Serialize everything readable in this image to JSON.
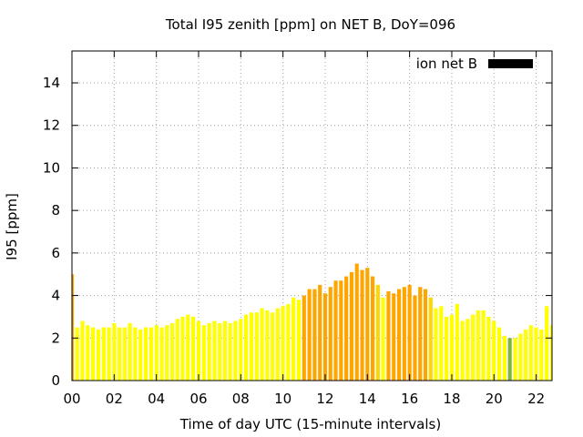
{
  "chart_data": {
    "type": "bar",
    "title": "Total I95 zenith [ppm] on NET B, DoY=096",
    "xlabel": "Time of day UTC (15-minute intervals)",
    "ylabel": "I95 [ppm]",
    "xlim": [
      0,
      22.75
    ],
    "ylim": [
      0,
      15.5
    ],
    "x_ticks": [
      0,
      2,
      4,
      6,
      8,
      10,
      12,
      14,
      16,
      18,
      20,
      22
    ],
    "x_tick_labels": [
      "00",
      "02",
      "04",
      "06",
      "08",
      "10",
      "12",
      "14",
      "16",
      "18",
      "20",
      "22"
    ],
    "y_ticks": [
      0,
      2,
      4,
      6,
      8,
      10,
      12,
      14
    ],
    "y_tick_labels": [
      "0",
      "2",
      "4",
      "6",
      "8",
      "10",
      "12",
      "14"
    ],
    "grid": true,
    "legend": {
      "label": "ion net B",
      "position": "top-right",
      "color": "#000000"
    },
    "bar_width_hours": 0.18,
    "colors": {
      "yellow": "#ffff00",
      "gold": "#ffd700",
      "orange": "#ffa500",
      "green": "#7cb342"
    },
    "x": [
      0.0,
      0.25,
      0.5,
      0.75,
      1.0,
      1.25,
      1.5,
      1.75,
      2.0,
      2.25,
      2.5,
      2.75,
      3.0,
      3.25,
      3.5,
      3.75,
      4.0,
      4.25,
      4.5,
      4.75,
      5.0,
      5.25,
      5.5,
      5.75,
      6.0,
      6.25,
      6.5,
      6.75,
      7.0,
      7.25,
      7.5,
      7.75,
      8.0,
      8.25,
      8.5,
      8.75,
      9.0,
      9.25,
      9.5,
      9.75,
      10.0,
      10.25,
      10.5,
      10.75,
      11.0,
      11.25,
      11.5,
      11.75,
      12.0,
      12.25,
      12.5,
      12.75,
      13.0,
      13.25,
      13.5,
      13.75,
      14.0,
      14.25,
      14.5,
      14.75,
      15.0,
      15.25,
      15.5,
      15.75,
      16.0,
      16.25,
      16.5,
      16.75,
      17.0,
      17.25,
      17.5,
      17.75,
      18.0,
      18.25,
      18.5,
      18.75,
      19.0,
      19.25,
      19.5,
      19.75,
      20.0,
      20.25,
      20.5,
      20.75,
      21.0,
      21.25,
      21.5,
      21.75,
      22.0,
      22.25,
      22.5,
      22.75
    ],
    "values": [
      5.0,
      2.5,
      2.8,
      2.6,
      2.5,
      2.4,
      2.5,
      2.5,
      2.7,
      2.5,
      2.5,
      2.7,
      2.5,
      2.4,
      2.5,
      2.5,
      2.6,
      2.5,
      2.6,
      2.7,
      2.9,
      3.0,
      3.1,
      3.0,
      2.8,
      2.6,
      2.7,
      2.8,
      2.7,
      2.8,
      2.7,
      2.8,
      2.9,
      3.1,
      3.2,
      3.2,
      3.4,
      3.3,
      3.2,
      3.4,
      3.5,
      3.6,
      3.9,
      3.8,
      4.0,
      4.3,
      4.3,
      4.5,
      4.1,
      4.4,
      4.7,
      4.7,
      4.9,
      5.1,
      5.5,
      5.2,
      5.3,
      4.9,
      4.5,
      3.9,
      4.2,
      4.1,
      4.3,
      4.4,
      4.5,
      4.0,
      4.4,
      4.3,
      3.9,
      3.4,
      3.5,
      3.0,
      3.1,
      3.6,
      2.8,
      2.9,
      3.1,
      3.3,
      3.3,
      3.0,
      2.8,
      2.5,
      2.1,
      2.0,
      2.0,
      2.2,
      2.4,
      2.6,
      2.5,
      2.4,
      3.5,
      2.6
    ],
    "bar_colors": [
      "orange",
      "yellow",
      "yellow",
      "yellow",
      "yellow",
      "yellow",
      "yellow",
      "yellow",
      "yellow",
      "yellow",
      "yellow",
      "yellow",
      "yellow",
      "yellow",
      "yellow",
      "yellow",
      "yellow",
      "yellow",
      "yellow",
      "yellow",
      "yellow",
      "yellow",
      "yellow",
      "yellow",
      "yellow",
      "yellow",
      "yellow",
      "yellow",
      "yellow",
      "yellow",
      "yellow",
      "yellow",
      "yellow",
      "yellow",
      "yellow",
      "yellow",
      "yellow",
      "yellow",
      "yellow",
      "yellow",
      "yellow",
      "yellow",
      "yellow",
      "yellow",
      "orange",
      "orange",
      "orange",
      "orange",
      "orange",
      "orange",
      "orange",
      "orange",
      "orange",
      "orange",
      "orange",
      "orange",
      "orange",
      "orange",
      "gold",
      "yellow",
      "orange",
      "orange",
      "orange",
      "orange",
      "orange",
      "orange",
      "orange",
      "orange",
      "gold",
      "yellow",
      "yellow",
      "yellow",
      "yellow",
      "yellow",
      "yellow",
      "yellow",
      "yellow",
      "yellow",
      "yellow",
      "yellow",
      "yellow",
      "yellow",
      "yellow",
      "green",
      "yellow",
      "yellow",
      "yellow",
      "yellow",
      "yellow",
      "yellow",
      "yellow",
      "yellow"
    ]
  }
}
